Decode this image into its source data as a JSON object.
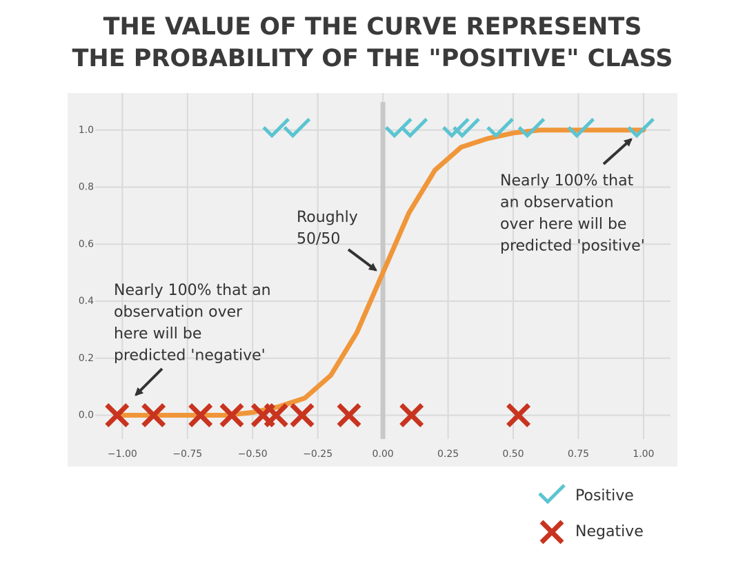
{
  "chart_data": {
    "type": "scatter",
    "title": [
      "THE VALUE OF THE CURVE REPRESENTS",
      "THE PROBABILITY OF THE \"POSITIVE\" CLASS"
    ],
    "xlim": [
      -1.21,
      1.13
    ],
    "ylim": [
      -0.18,
      1.13
    ],
    "xticks": [
      {
        "value": -1,
        "label": "−1.00"
      },
      {
        "value": -0.75,
        "label": "−0.75"
      },
      {
        "value": -0.5,
        "label": "−0.50"
      },
      {
        "value": -0.25,
        "label": "−0.25"
      },
      {
        "value": 0,
        "label": "0.00"
      },
      0.25,
      {
        "value": 0.5,
        "label": "0.50"
      },
      0.75,
      {
        "value": 1,
        "label": "1.00"
      }
    ],
    "yticks": [
      {
        "value": 0,
        "label": "0.0"
      },
      0.2,
      0.4,
      0.6,
      0.8,
      {
        "value": 1,
        "label": "1.0"
      }
    ],
    "grid": true,
    "vline": 0,
    "vline_color": "#c8c8c8",
    "curve": {
      "color": "#f0963a",
      "x": [
        -1,
        -0.9,
        -0.8,
        -0.7,
        -0.6,
        -0.5,
        -0.4,
        -0.3,
        -0.2,
        -0.1,
        0,
        0.1,
        0.2,
        0.3,
        0.4,
        0.5,
        0.6,
        0.7,
        0.8,
        0.9,
        1
      ],
      "values": [
        0,
        0,
        0,
        0,
        0,
        0.01,
        0.03,
        0.06,
        0.14,
        0.29,
        0.5,
        0.71,
        0.86,
        0.94,
        0.97,
        0.99,
        1,
        1,
        1,
        1,
        1
      ]
    },
    "series": [
      {
        "name": "Positive",
        "color": "#5bc4d1",
        "marker": "check",
        "x": [
          -0.41,
          -0.33,
          0.06,
          0.12,
          0.28,
          0.32,
          0.45,
          0.57,
          0.76,
          0.99
        ],
        "values": [
          1,
          1,
          1,
          1,
          1,
          1,
          1,
          1,
          1,
          1
        ]
      },
      {
        "name": "Negative",
        "color": "#c8341f",
        "marker": "x",
        "x": [
          -1.02,
          -0.88,
          -0.7,
          -0.58,
          -0.46,
          -0.41,
          -0.31,
          -0.13,
          0.11,
          0.52
        ],
        "values": [
          0,
          0,
          0,
          0,
          0,
          0,
          0,
          0,
          0,
          0
        ]
      }
    ],
    "annotations": [
      [
        "Nearly 100% that an",
        "observation over",
        "here will be",
        "predicted 'negative'"
      ],
      [
        "Roughly",
        "50/50"
      ],
      [
        "Nearly 100% that",
        "an observation",
        "over here will be",
        "predicted 'positive'"
      ]
    ]
  }
}
